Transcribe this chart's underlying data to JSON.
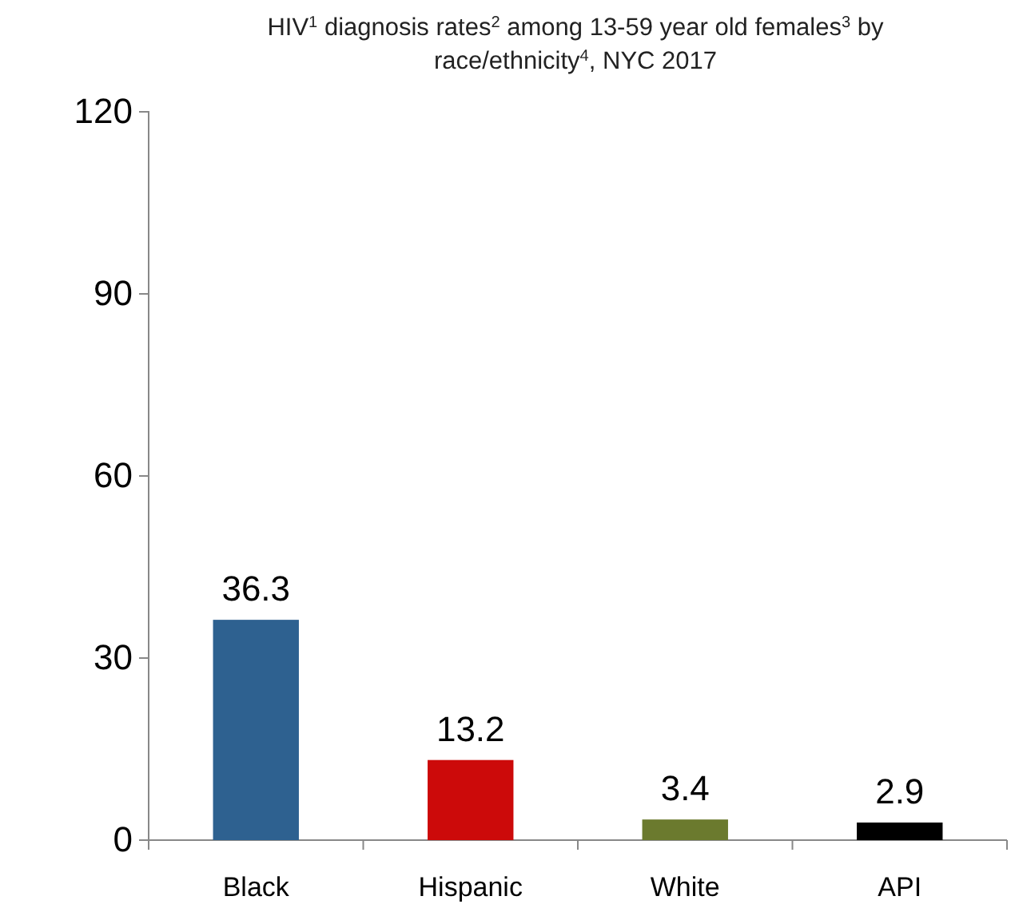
{
  "chart_data": {
    "type": "bar",
    "title": "HIV$^{1}$ diagnosis rates$^{2}$ among 13-59 year old females$^{3}$ by race/ethnicity$^{4}$, NYC 2017",
    "categories": [
      "Black",
      "Hispanic",
      "White",
      "API"
    ],
    "values": [
      36.3,
      13.2,
      3.4,
      2.9
    ],
    "colors": [
      "#2e6190",
      "#cc0a0a",
      "#6b7a2e",
      "#000000"
    ],
    "ylim": [
      0,
      120
    ],
    "yticks": [
      0,
      30,
      60,
      90,
      120
    ],
    "data_labels": true,
    "grid": false
  }
}
